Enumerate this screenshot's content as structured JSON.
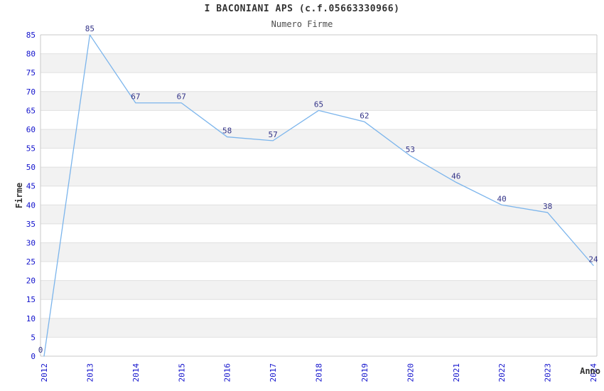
{
  "chart_data": {
    "type": "line",
    "title": "I BACONIANI APS (c.f.05663330966)",
    "subtitle": "Numero Firme",
    "xlabel": "Anno",
    "ylabel": "Firme",
    "x": [
      2012,
      2013,
      2014,
      2015,
      2016,
      2017,
      2018,
      2019,
      2020,
      2021,
      2022,
      2023,
      2024
    ],
    "values": [
      0,
      85,
      67,
      67,
      58,
      57,
      65,
      62,
      53,
      46,
      40,
      38,
      24
    ],
    "ylim": [
      0,
      85
    ],
    "ytick_step": 5,
    "grid": true,
    "legend": false,
    "plot_bands": "alternating horizontal gray stripes every 5 units",
    "colors": {
      "line": "#7cb5ec",
      "tick_label": "#1212cc",
      "data_label": "#333388",
      "band": "#f2f2f2",
      "gridline": "#e0e0e0",
      "border": "#c9c9c9",
      "title": "#333333",
      "subtitle": "#4d4d4d",
      "axis_label": "#333333",
      "background": "#ffffff"
    }
  }
}
